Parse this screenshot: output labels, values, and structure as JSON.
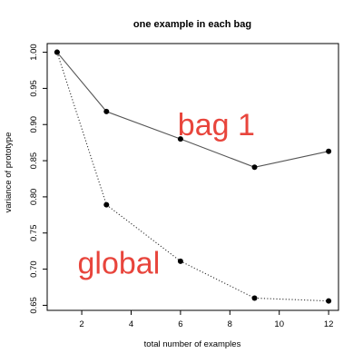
{
  "chart_data": {
    "type": "line",
    "title": "one example in each bag",
    "xlabel": "total number of examples",
    "ylabel": "variance of prototype",
    "xlim": [
      0.6,
      12.4
    ],
    "ylim": [
      0.643,
      1.012
    ],
    "xticks": [
      2,
      4,
      6,
      8,
      10,
      12
    ],
    "yticks": [
      0.65,
      0.7,
      0.75,
      0.8,
      0.85,
      0.9,
      0.95,
      1.0
    ],
    "ytick_labels": [
      "0.65",
      "0.70",
      "0.75",
      "0.80",
      "0.85",
      "0.90",
      "0.95",
      "1.00"
    ],
    "grid": false,
    "series": [
      {
        "name": "bag 1",
        "line_style": "solid",
        "line_color": "#555555",
        "x": [
          1,
          3,
          6,
          9,
          12
        ],
        "y": [
          1.0,
          0.918,
          0.88,
          0.841,
          0.863
        ]
      },
      {
        "name": "global",
        "line_style": "dotted",
        "line_color": "#333333",
        "x": [
          1,
          3,
          6,
          9,
          12
        ],
        "y": [
          1.0,
          0.789,
          0.711,
          0.66,
          0.656
        ]
      }
    ],
    "annotations": [
      {
        "text": "bag 1",
        "x": 7.45,
        "y": 0.9,
        "color": "#e8453c"
      },
      {
        "text": "global",
        "x": 3.5,
        "y": 0.709,
        "color": "#e8453c"
      }
    ]
  }
}
